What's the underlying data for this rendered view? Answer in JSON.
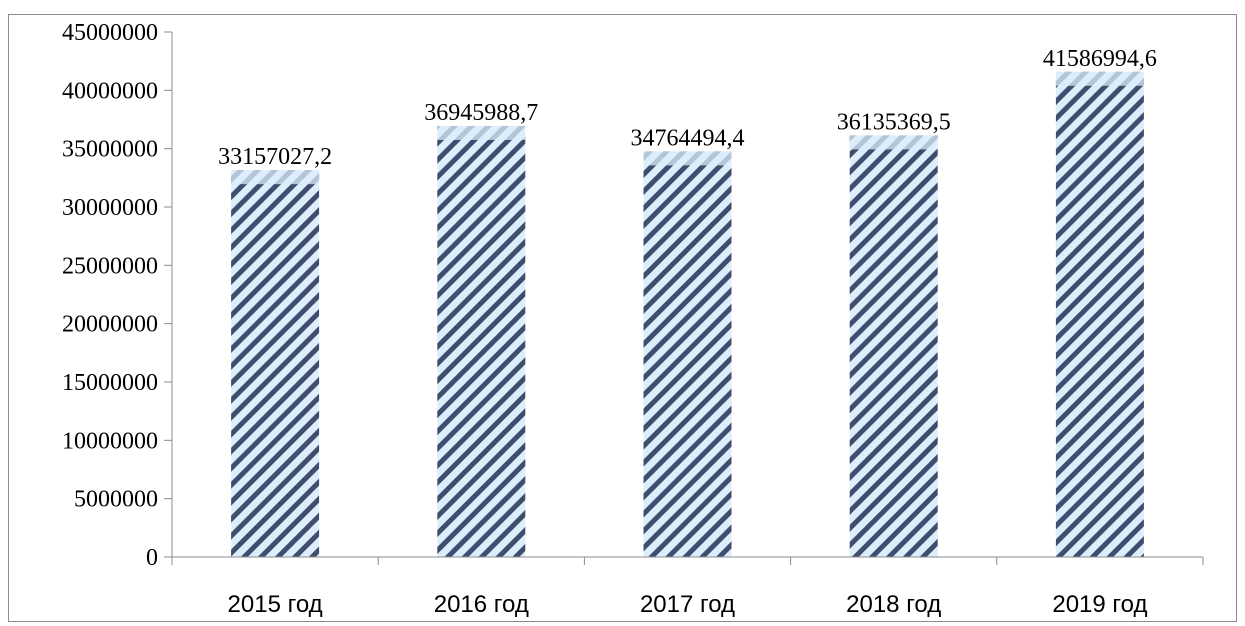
{
  "chart_data": {
    "type": "bar",
    "categories": [
      "2015 год",
      "2016 год",
      "2017 год",
      "2018 год",
      "2019 год"
    ],
    "values": [
      33157027.2,
      36945988.7,
      34764494.4,
      36135369.5,
      41586994.6
    ],
    "data_labels": [
      "33157027,2",
      "36945988,7",
      "34764494,4",
      "36135369,5",
      "41586994,6"
    ],
    "yticks": [
      "0",
      "5000000",
      "10000000",
      "15000000",
      "20000000",
      "25000000",
      "30000000",
      "35000000",
      "40000000",
      "45000000"
    ],
    "ylim": [
      0,
      45000000
    ],
    "grid": false,
    "legend": "none",
    "title": "",
    "xlabel": "",
    "ylabel": "",
    "colors": {
      "bar_fill": "#dceefb",
      "bar_hatch": "#3f4e6e",
      "axis": "#8c8c8c"
    }
  }
}
